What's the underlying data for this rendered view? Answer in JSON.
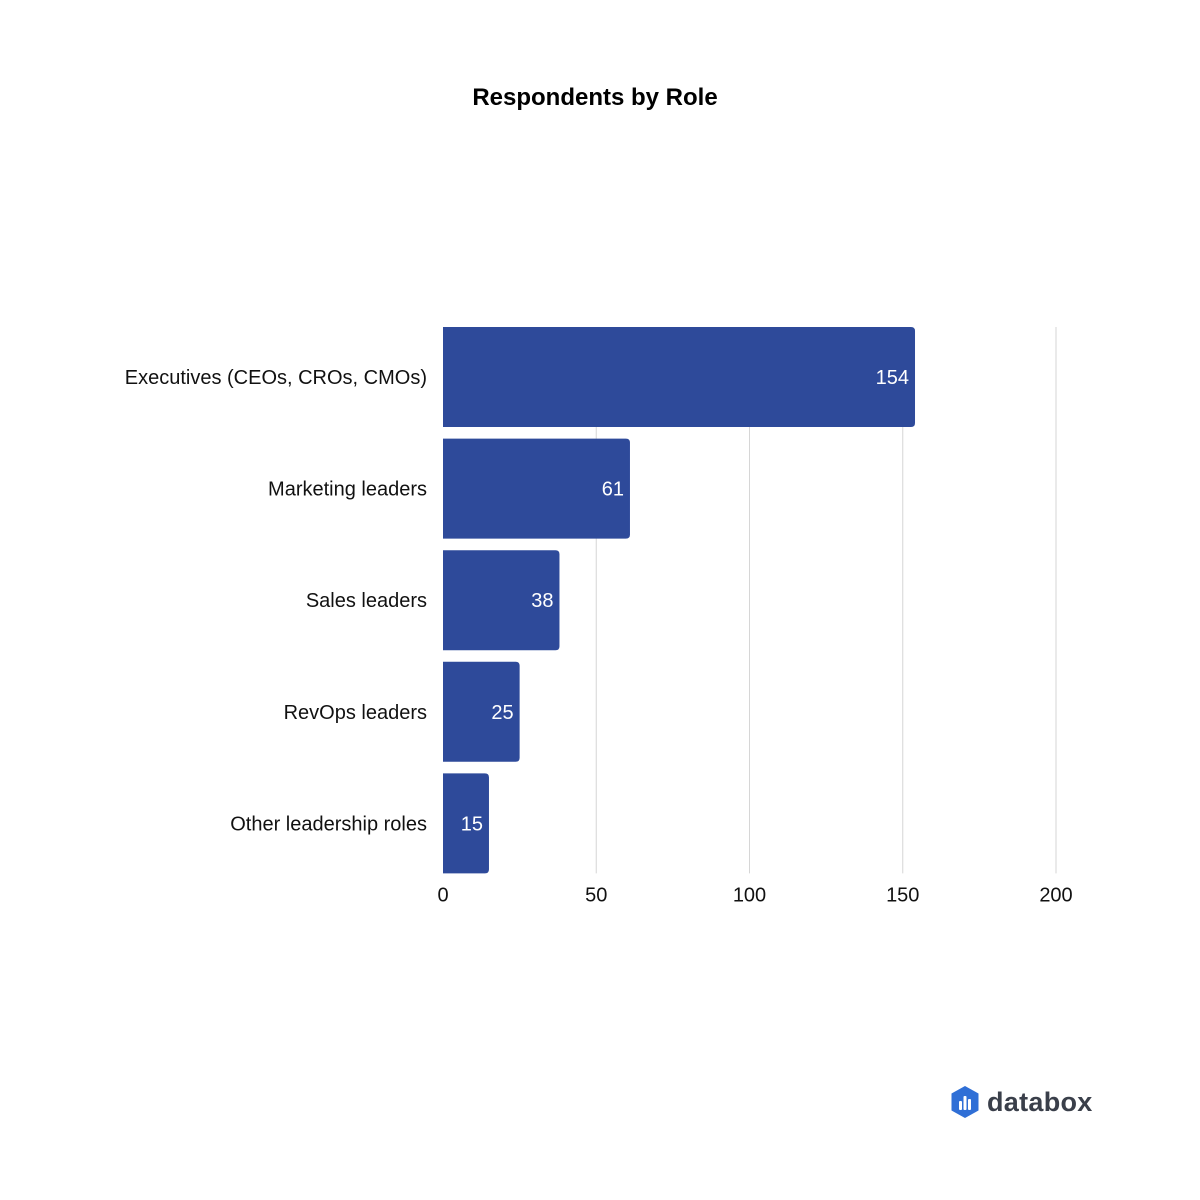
{
  "chart_data": {
    "type": "bar",
    "orientation": "horizontal",
    "title": "Respondents by Role",
    "categories": [
      "Executives (CEOs, CROs, CMOs)",
      "Marketing leaders",
      "Sales leaders",
      "RevOps leaders",
      "Other leadership roles"
    ],
    "values": [
      154,
      61,
      38,
      25,
      15
    ],
    "data_labels": [
      "154",
      "61",
      "38",
      "25",
      "15"
    ],
    "xlim": [
      0,
      200
    ],
    "x_ticks": [
      0,
      50,
      100,
      150,
      200
    ],
    "x_tick_labels": [
      "0",
      "50",
      "100",
      "150",
      "200"
    ],
    "grid": true,
    "legend": "none",
    "bar_color": "#2e4a9a"
  },
  "branding": {
    "name": "databox",
    "icon": "databox-logo-icon",
    "icon_color": "#2f6fd6"
  }
}
